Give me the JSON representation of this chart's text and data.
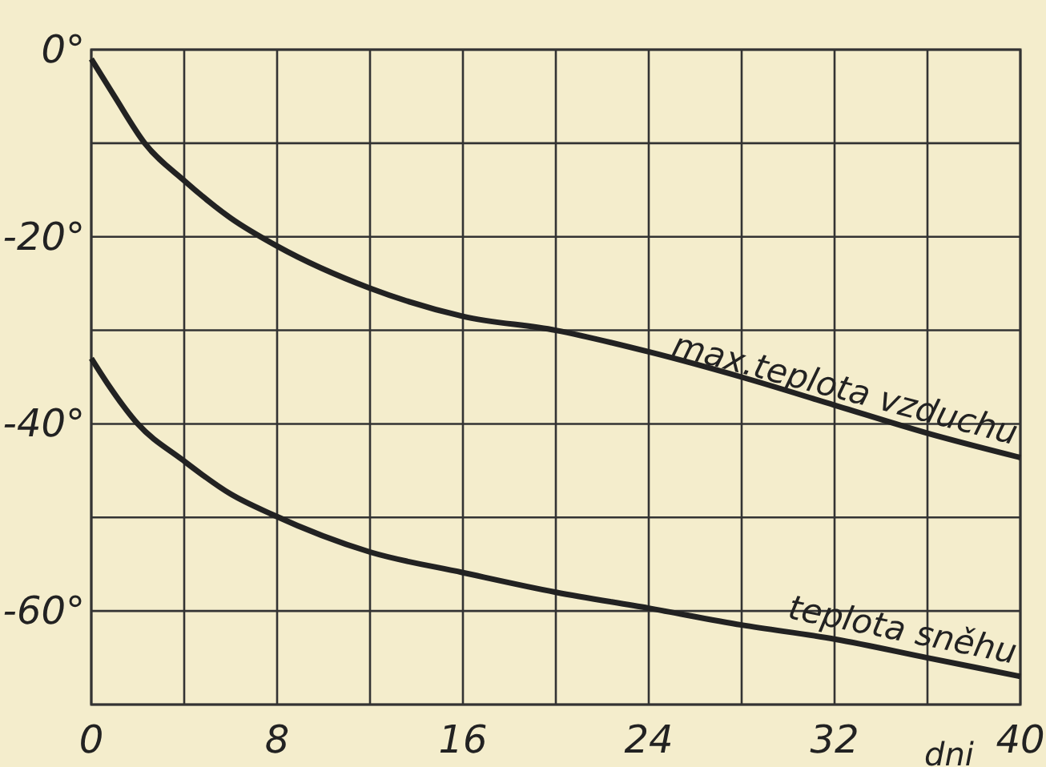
{
  "chart_data": {
    "type": "line",
    "xlabel": "dni",
    "xlim": [
      0,
      40
    ],
    "ylim": [
      -70,
      0
    ],
    "xticks": [
      0,
      {
        "value": 4,
        "label": null
      },
      8,
      {
        "value": 12,
        "label": null
      },
      16,
      {
        "value": 20,
        "label": null
      },
      24,
      {
        "value": 28,
        "label": null
      },
      32,
      {
        "value": 36,
        "label": null
      },
      40
    ],
    "yticks": [
      {
        "value": 0,
        "label": "0°"
      },
      {
        "value": -10,
        "label": null
      },
      {
        "value": -20,
        "label": "-20°"
      },
      {
        "value": -30,
        "label": null
      },
      {
        "value": -40,
        "label": "-40°"
      },
      {
        "value": -50,
        "label": null
      },
      {
        "value": -60,
        "label": "-60°"
      },
      {
        "value": -70,
        "label": null
      }
    ],
    "grid": true,
    "marker": "none",
    "line_style": "solid",
    "series": [
      {
        "name": "max.teplota vzduchu",
        "color": "#222222",
        "x": [
          0,
          1,
          2.3,
          4,
          6,
          8,
          12,
          16,
          20,
          24,
          28,
          32,
          36,
          40
        ],
        "values": [
          -1,
          -5,
          -10,
          -14,
          -18,
          -21,
          -25.5,
          -28.5,
          -30,
          -32.3,
          -35,
          -38,
          -41,
          -43.6
        ]
      },
      {
        "name": "teplota sněhu",
        "color": "#222222",
        "x": [
          0,
          0.7,
          2,
          3.9,
          6,
          7.8,
          12,
          16,
          20,
          24,
          28,
          32,
          36,
          40
        ],
        "values": [
          -33,
          -35.7,
          -40,
          -43.8,
          -47.5,
          -49.7,
          -53.7,
          -55.9,
          -58,
          -59.7,
          -61.5,
          -63,
          -65,
          -67
        ]
      }
    ]
  }
}
